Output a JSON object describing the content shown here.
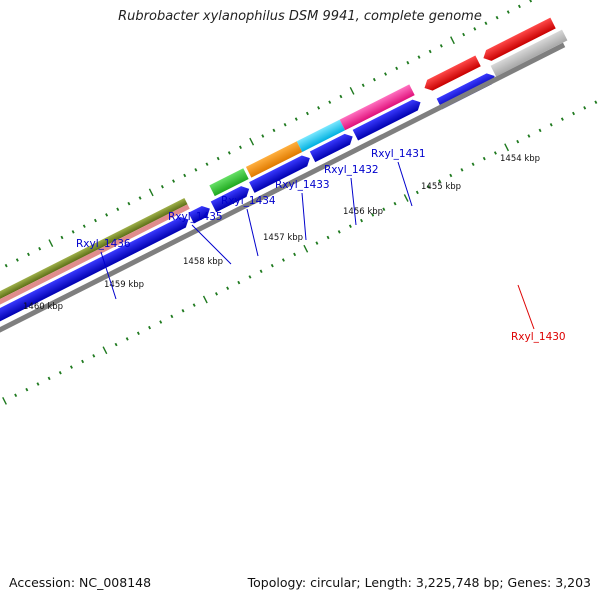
{
  "title": "Rubrobacter xylanophilus DSM 9941, complete genome",
  "accession_text": "Accession: NC_008148",
  "summary_text": "Topology: circular; Length: 3,225,748 bp; Genes: 3,203",
  "colors": {
    "backbone": "#7f7f7f",
    "tick": "#1f7a1f",
    "cds_blue": "#0000e0",
    "label_blue": "#0000cc",
    "label_red": "#dd0000"
  },
  "ruler": {
    "labels": [
      "1454 kbp",
      "1455 kbp",
      "1456 kbp",
      "1457 kbp",
      "1458 kbp",
      "1459 kbp",
      "1460 kbp"
    ]
  },
  "gene_labels": [
    {
      "text": "Rxyl_1431",
      "color": "blue"
    },
    {
      "text": "Rxyl_1432",
      "color": "blue"
    },
    {
      "text": "Rxyl_1433",
      "color": "blue"
    },
    {
      "text": "Rxyl_1434",
      "color": "blue"
    },
    {
      "text": "Rxyl_1435",
      "color": "blue"
    },
    {
      "text": "Rxyl_1436",
      "color": "blue"
    },
    {
      "text": "Rxyl_1430",
      "color": "red"
    }
  ]
}
